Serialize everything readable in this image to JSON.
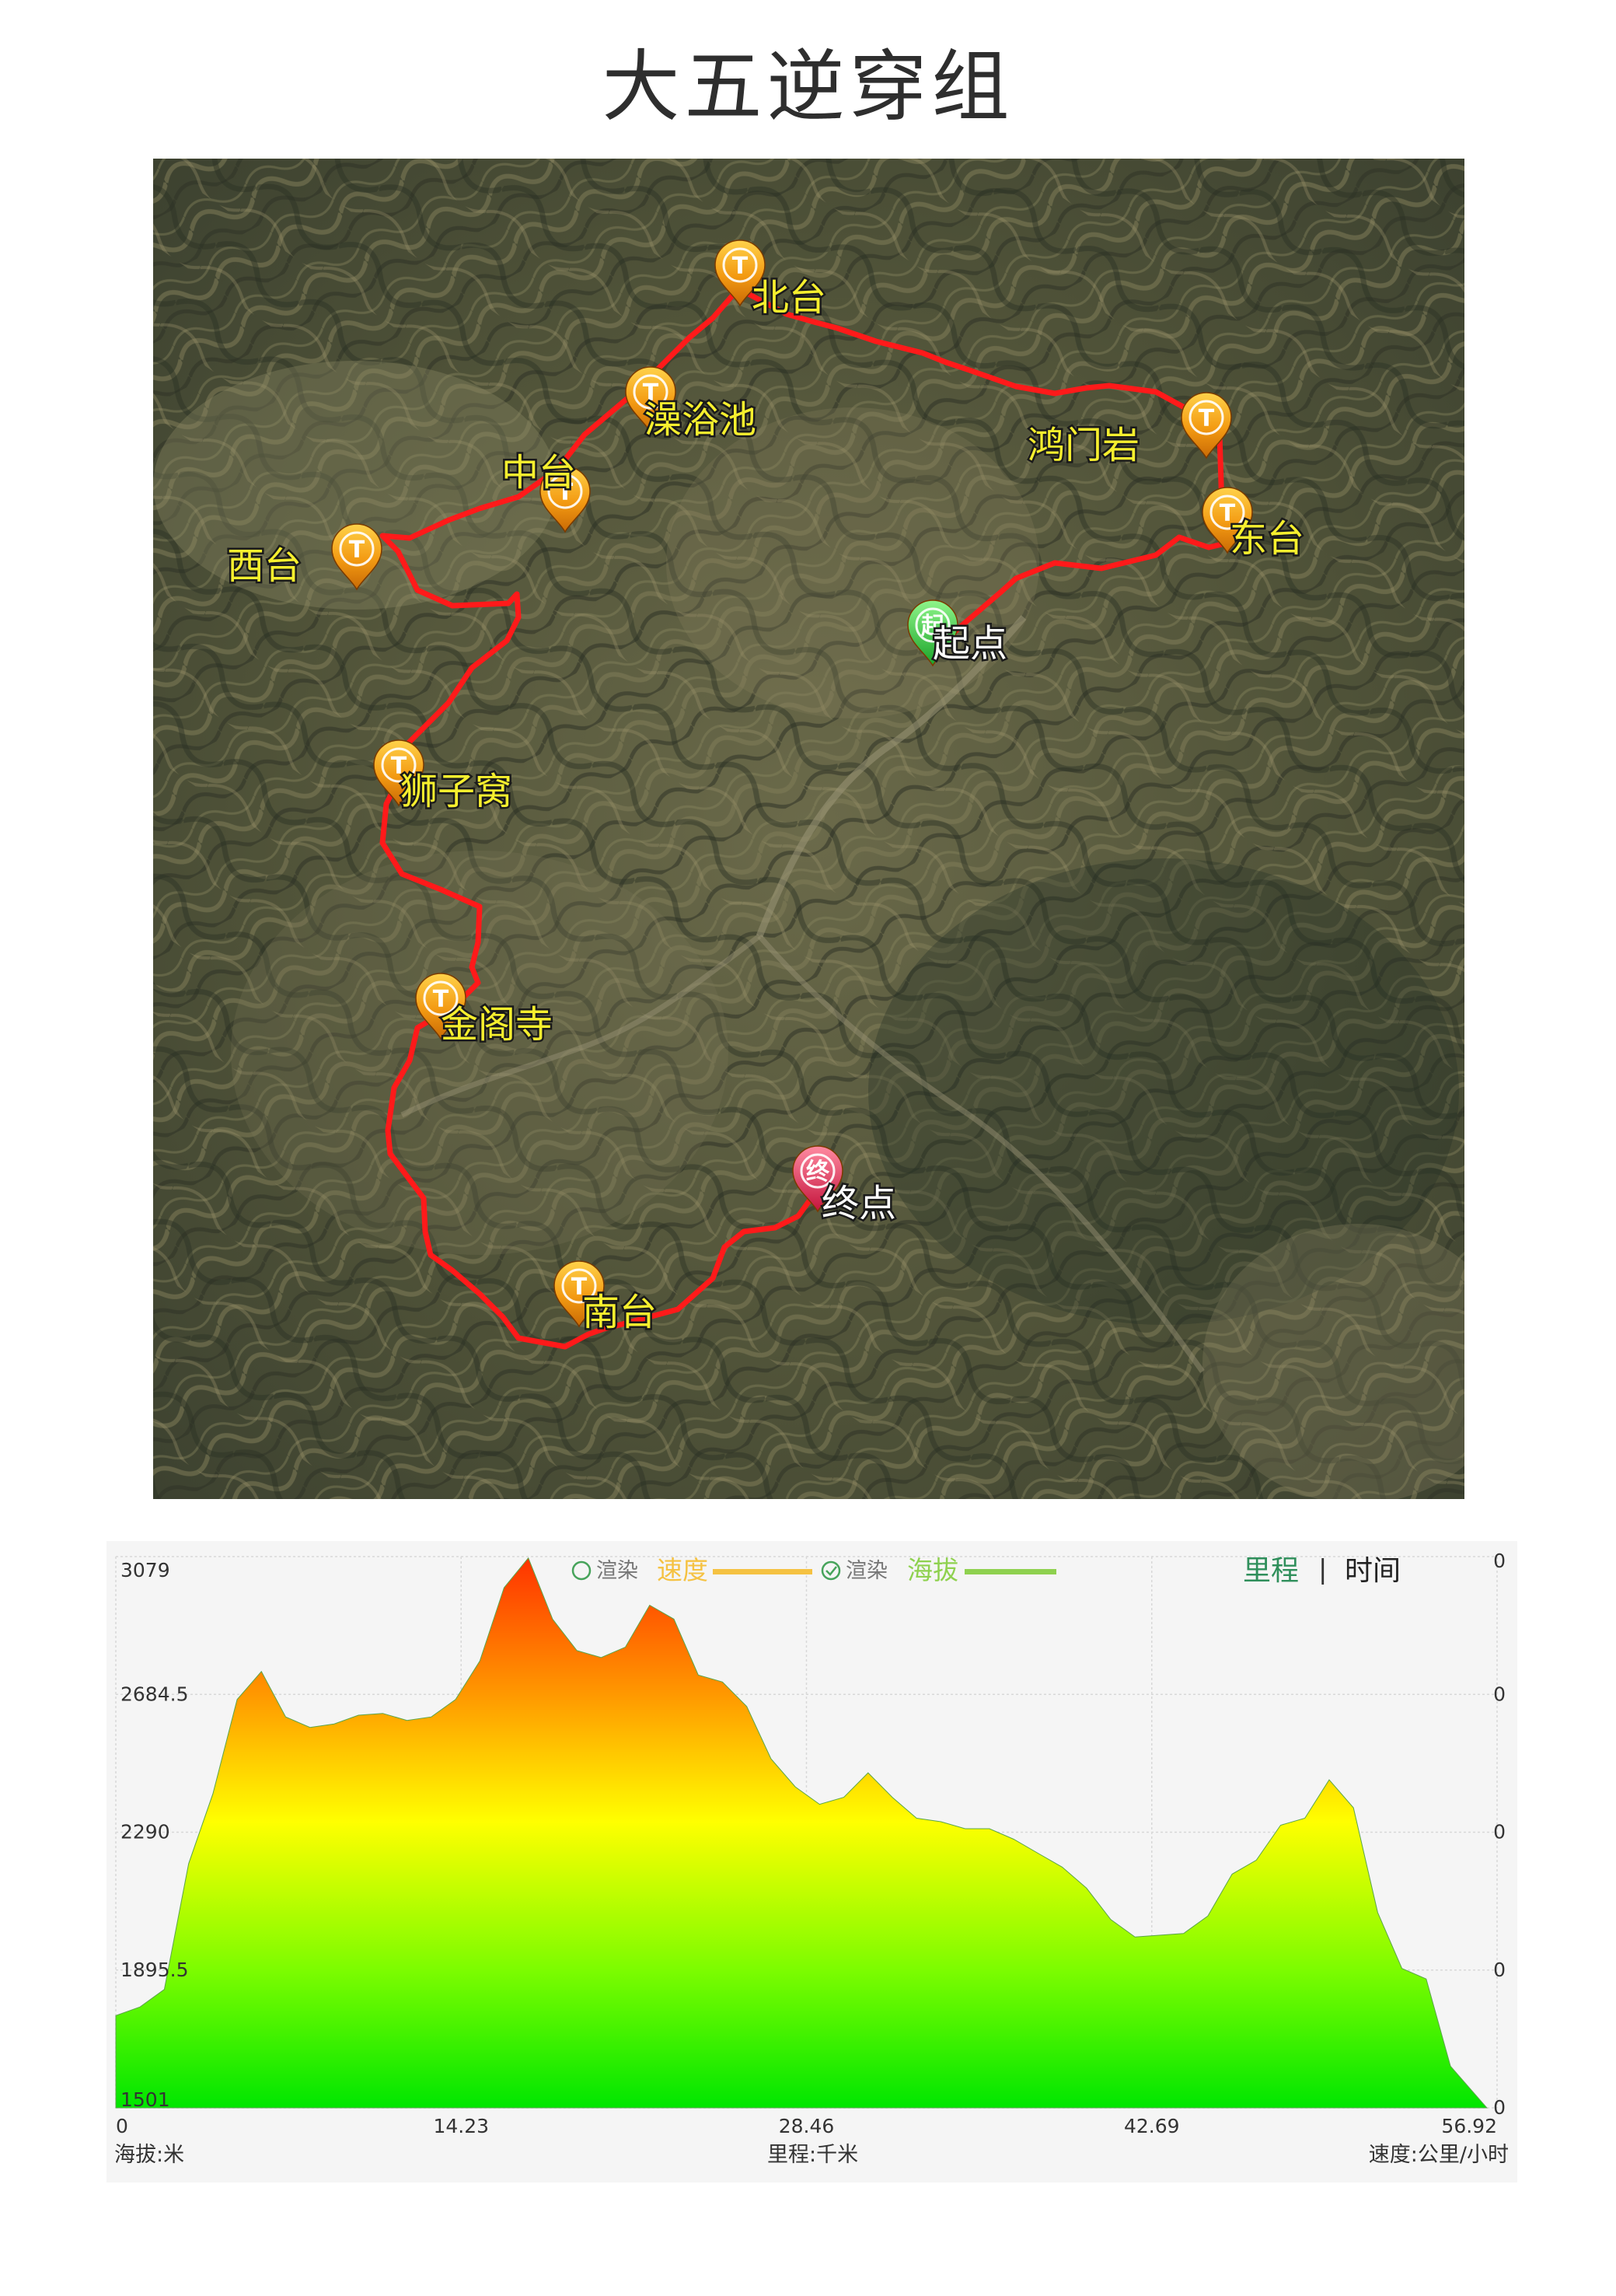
{
  "page": {
    "title": "大五逆穿组"
  },
  "map": {
    "waypoints": [
      {
        "name": "北台",
        "type": "peak",
        "icon": "t-pin-icon"
      },
      {
        "name": "澡浴池",
        "type": "peak",
        "icon": "t-pin-icon"
      },
      {
        "name": "中台",
        "type": "peak",
        "icon": "t-pin-icon"
      },
      {
        "name": "西台",
        "type": "peak",
        "icon": "t-pin-icon"
      },
      {
        "name": "鸿门岩",
        "type": "peak",
        "icon": "t-pin-icon"
      },
      {
        "name": "东台",
        "type": "peak",
        "icon": "t-pin-icon"
      },
      {
        "name": "起点",
        "type": "start",
        "icon": "start-pin-icon",
        "pin_char": "起"
      },
      {
        "name": "狮子窝",
        "type": "peak",
        "icon": "t-pin-icon"
      },
      {
        "name": "金阁寺",
        "type": "peak",
        "icon": "t-pin-icon"
      },
      {
        "name": "终点",
        "type": "end",
        "icon": "end-pin-icon",
        "pin_char": "终"
      },
      {
        "name": "南台",
        "type": "peak",
        "icon": "t-pin-icon"
      }
    ],
    "pin_letter": "T",
    "route_color": "#ff1a1a"
  },
  "chart_data": {
    "type": "area",
    "series": [
      {
        "name": "海拔",
        "x": [
          0,
          1,
          2,
          3,
          4,
          5,
          6,
          7,
          8,
          9,
          10,
          11,
          12,
          13,
          14,
          15,
          16,
          17,
          18,
          19,
          20,
          21,
          22,
          23,
          24,
          25,
          26,
          27,
          28,
          29,
          30,
          31,
          32,
          33,
          34,
          35,
          36,
          37,
          38,
          39,
          40,
          41,
          42,
          43,
          44,
          45,
          46,
          47,
          48,
          49,
          50,
          51,
          52,
          53,
          54,
          55,
          56.5
        ],
        "values": [
          1765,
          1790,
          1840,
          2200,
          2400,
          2670,
          2750,
          2620,
          2590,
          2600,
          2625,
          2630,
          2610,
          2620,
          2670,
          2780,
          2990,
          3075,
          2900,
          2810,
          2790,
          2820,
          2940,
          2900,
          2740,
          2720,
          2650,
          2500,
          2420,
          2370,
          2390,
          2460,
          2390,
          2330,
          2320,
          2300,
          2300,
          2270,
          2230,
          2190,
          2130,
          2040,
          1990,
          1995,
          2000,
          2050,
          2170,
          2210,
          2310,
          2330,
          2440,
          2360,
          2060,
          1900,
          1870,
          1620,
          1501
        ]
      },
      {
        "name": "速度",
        "values": []
      }
    ],
    "ylabel": "海拔:米",
    "xlabel": "里程:千米",
    "y2label": "速度:公里/小时",
    "ylim": [
      1501,
      3079
    ],
    "xlim": [
      0,
      56.92
    ],
    "y_ticks": [
      "3079",
      "2684.5",
      "2290",
      "1895.5",
      "1501"
    ],
    "x_ticks": [
      "0",
      "14.23",
      "28.46",
      "42.69",
      "56.92"
    ],
    "y2_ticks": [
      "0",
      "0",
      "0",
      "0",
      "0"
    ],
    "grid": true,
    "gradient_colors": [
      "#ff3300",
      "#ff9900",
      "#ffff00",
      "#7cfc00",
      "#00e600"
    ],
    "legend": [
      {
        "prefix": "渲染",
        "label": "速度",
        "checked": false,
        "color": "#f5c242"
      },
      {
        "prefix": "渲染",
        "label": "海拔",
        "checked": true,
        "color": "#8fd14f"
      }
    ],
    "toggle": {
      "mileage": "里程",
      "separator": "|",
      "time": "时间",
      "active_color": "#2f8f5b"
    }
  }
}
